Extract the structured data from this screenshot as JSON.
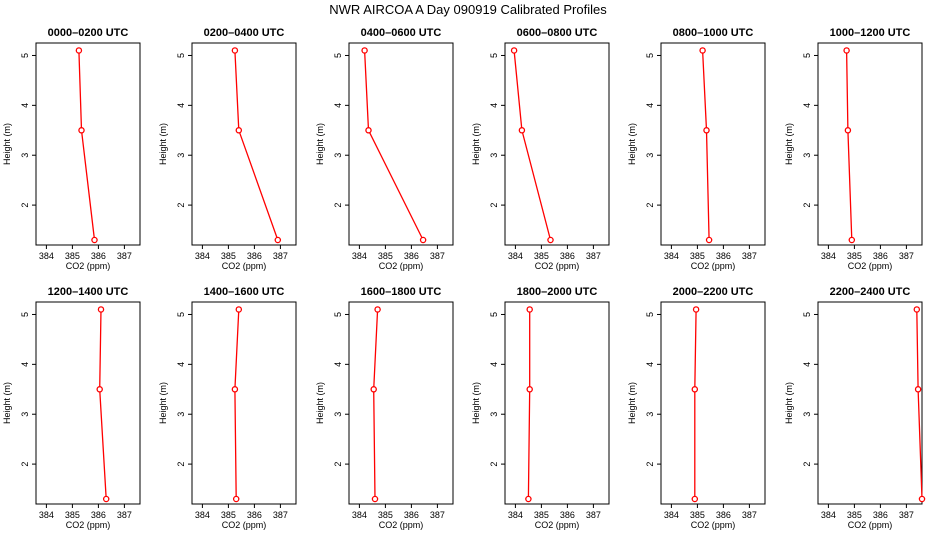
{
  "title": "NWR AIRCOA A  Day 090919  Calibrated Profiles",
  "colors": {
    "series": "#ff0000",
    "axes": "#000000",
    "background": "#ffffff"
  },
  "chart_data": [
    {
      "type": "line",
      "title": "0000–0200 UTC",
      "xlabel": "CO2 (ppm)",
      "ylabel": "Height (m)",
      "xlim": [
        383.6,
        387.6
      ],
      "ylim": [
        1.2,
        5.25
      ],
      "xticks": [
        384,
        385,
        386,
        387
      ],
      "yticks": [
        2,
        3,
        4,
        5
      ],
      "grid": false,
      "series": [
        {
          "x": [
            385.25,
            385.35,
            385.85
          ],
          "y": [
            5.1,
            3.5,
            1.3
          ]
        }
      ]
    },
    {
      "type": "line",
      "title": "0200–0400 UTC",
      "xlabel": "CO2 (ppm)",
      "ylabel": "Height (m)",
      "xlim": [
        383.6,
        387.6
      ],
      "ylim": [
        1.2,
        5.25
      ],
      "xticks": [
        384,
        385,
        386,
        387
      ],
      "yticks": [
        2,
        3,
        4,
        5
      ],
      "grid": false,
      "series": [
        {
          "x": [
            385.25,
            385.4,
            386.9
          ],
          "y": [
            5.1,
            3.5,
            1.3
          ]
        }
      ]
    },
    {
      "type": "line",
      "title": "0400–0600 UTC",
      "xlabel": "CO2 (ppm)",
      "ylabel": "Height (m)",
      "xlim": [
        383.6,
        387.6
      ],
      "ylim": [
        1.2,
        5.25
      ],
      "xticks": [
        384,
        385,
        386,
        387
      ],
      "yticks": [
        2,
        3,
        4,
        5
      ],
      "grid": false,
      "series": [
        {
          "x": [
            384.2,
            384.35,
            386.45
          ],
          "y": [
            5.1,
            3.5,
            1.3
          ]
        }
      ]
    },
    {
      "type": "line",
      "title": "0600–0800 UTC",
      "xlabel": "CO2 (ppm)",
      "ylabel": "Height (m)",
      "xlim": [
        383.6,
        387.6
      ],
      "ylim": [
        1.2,
        5.25
      ],
      "xticks": [
        384,
        385,
        386,
        387
      ],
      "yticks": [
        2,
        3,
        4,
        5
      ],
      "grid": false,
      "series": [
        {
          "x": [
            383.95,
            384.25,
            385.35
          ],
          "y": [
            5.1,
            3.5,
            1.3
          ]
        }
      ]
    },
    {
      "type": "line",
      "title": "0800–1000 UTC",
      "xlabel": "CO2 (ppm)",
      "ylabel": "Height (m)",
      "xlim": [
        383.6,
        387.6
      ],
      "ylim": [
        1.2,
        5.25
      ],
      "xticks": [
        384,
        385,
        386,
        387
      ],
      "yticks": [
        2,
        3,
        4,
        5
      ],
      "grid": false,
      "series": [
        {
          "x": [
            385.2,
            385.35,
            385.45
          ],
          "y": [
            5.1,
            3.5,
            1.3
          ]
        }
      ]
    },
    {
      "type": "line",
      "title": "1000–1200 UTC",
      "xlabel": "CO2 (ppm)",
      "ylabel": "Height (m)",
      "xlim": [
        383.6,
        387.6
      ],
      "ylim": [
        1.2,
        5.25
      ],
      "xticks": [
        384,
        385,
        386,
        387
      ],
      "yticks": [
        2,
        3,
        4,
        5
      ],
      "grid": false,
      "series": [
        {
          "x": [
            384.7,
            384.75,
            384.9
          ],
          "y": [
            5.1,
            3.5,
            1.3
          ]
        }
      ]
    },
    {
      "type": "line",
      "title": "1200–1400 UTC",
      "xlabel": "CO2 (ppm)",
      "ylabel": "Height (m)",
      "xlim": [
        383.6,
        387.6
      ],
      "ylim": [
        1.2,
        5.25
      ],
      "xticks": [
        384,
        385,
        386,
        387
      ],
      "yticks": [
        2,
        3,
        4,
        5
      ],
      "grid": false,
      "series": [
        {
          "x": [
            386.1,
            386.05,
            386.3
          ],
          "y": [
            5.1,
            3.5,
            1.3
          ]
        }
      ]
    },
    {
      "type": "line",
      "title": "1400–1600 UTC",
      "xlabel": "CO2 (ppm)",
      "ylabel": "Height (m)",
      "xlim": [
        383.6,
        387.6
      ],
      "ylim": [
        1.2,
        5.25
      ],
      "xticks": [
        384,
        385,
        386,
        387
      ],
      "yticks": [
        2,
        3,
        4,
        5
      ],
      "grid": false,
      "series": [
        {
          "x": [
            385.4,
            385.25,
            385.3
          ],
          "y": [
            5.1,
            3.5,
            1.3
          ]
        }
      ]
    },
    {
      "type": "line",
      "title": "1600–1800 UTC",
      "xlabel": "CO2 (ppm)",
      "ylabel": "Height (m)",
      "xlim": [
        383.6,
        387.6
      ],
      "ylim": [
        1.2,
        5.25
      ],
      "xticks": [
        384,
        385,
        386,
        387
      ],
      "yticks": [
        2,
        3,
        4,
        5
      ],
      "grid": false,
      "series": [
        {
          "x": [
            384.7,
            384.55,
            384.6
          ],
          "y": [
            5.1,
            3.5,
            1.3
          ]
        }
      ]
    },
    {
      "type": "line",
      "title": "1800–2000 UTC",
      "xlabel": "CO2 (ppm)",
      "ylabel": "Height (m)",
      "xlim": [
        383.6,
        387.6
      ],
      "ylim": [
        1.2,
        5.25
      ],
      "xticks": [
        384,
        385,
        386,
        387
      ],
      "yticks": [
        2,
        3,
        4,
        5
      ],
      "grid": false,
      "series": [
        {
          "x": [
            384.55,
            384.55,
            384.5
          ],
          "y": [
            5.1,
            3.5,
            1.3
          ]
        }
      ]
    },
    {
      "type": "line",
      "title": "2000–2200 UTC",
      "xlabel": "CO2 (ppm)",
      "ylabel": "Height (m)",
      "xlim": [
        383.6,
        387.6
      ],
      "ylim": [
        1.2,
        5.25
      ],
      "xticks": [
        384,
        385,
        386,
        387
      ],
      "yticks": [
        2,
        3,
        4,
        5
      ],
      "grid": false,
      "series": [
        {
          "x": [
            384.95,
            384.9,
            384.9
          ],
          "y": [
            5.1,
            3.5,
            1.3
          ]
        }
      ]
    },
    {
      "type": "line",
      "title": "2200–2400 UTC",
      "xlabel": "CO2 (ppm)",
      "ylabel": "Height (m)",
      "xlim": [
        383.6,
        387.6
      ],
      "ylim": [
        1.2,
        5.25
      ],
      "xticks": [
        384,
        385,
        386,
        387
      ],
      "yticks": [
        2,
        3,
        4,
        5
      ],
      "grid": false,
      "series": [
        {
          "x": [
            387.4,
            387.45,
            387.6
          ],
          "y": [
            5.1,
            3.5,
            1.3
          ]
        }
      ]
    }
  ]
}
